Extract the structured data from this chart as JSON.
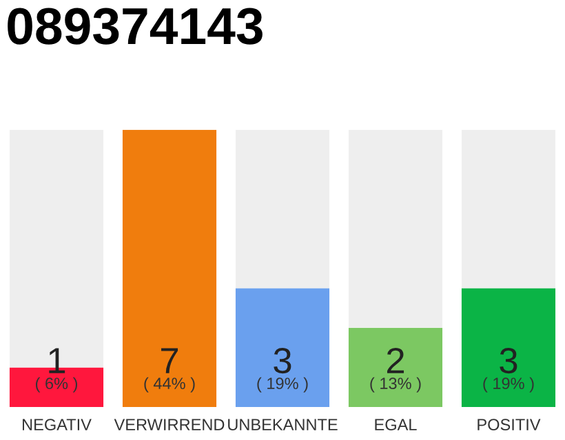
{
  "chart_data": {
    "type": "bar",
    "title": "089374143",
    "stacked": true,
    "categories": [
      "NEGATIV",
      "VERWIRREND",
      "UNBEKANNTE",
      "EGAL",
      "POSITIV"
    ],
    "series": [
      {
        "colors": [
          "#ff173d",
          "#f07d0d",
          "#6aa0ee",
          "#7cc862",
          "#0bb446"
        ],
        "values": [
          1,
          7,
          3,
          2,
          3
        ],
        "value_labels": [
          "1",
          "7",
          "3",
          "2",
          "3"
        ]
      },
      {
        "color": "#eeeeee",
        "values": [
          6,
          0,
          4,
          5,
          4
        ]
      }
    ],
    "annotations": [
      {
        "text": "( 6% )",
        "x": "NEGATIV",
        "y": 0
      },
      {
        "text": "( 44% )",
        "x": "VERWIRREND",
        "y": 0
      },
      {
        "text": "( 19% )",
        "x": "UNBEKANNTE",
        "y": 0
      },
      {
        "text": "( 13% )",
        "x": "EGAL",
        "y": 0
      },
      {
        "text": "( 19% )",
        "x": "POSITIV",
        "y": 0
      }
    ],
    "grid": false,
    "legend": false
  }
}
